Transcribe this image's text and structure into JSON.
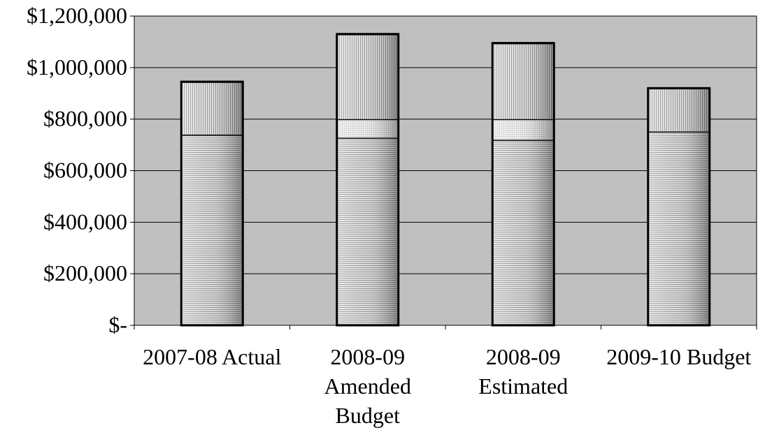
{
  "chart_data": {
    "type": "bar",
    "stacked": true,
    "categories": [
      "2007-08 Actual",
      "2008-09 Amended Budget",
      "2008-09 Estimated",
      "2009-10 Budget"
    ],
    "category_label_lines": [
      [
        "2007-08 Actual"
      ],
      [
        "2008-09",
        "Amended",
        "Budget"
      ],
      [
        "2008-09",
        "Estimated"
      ],
      [
        "2009-10 Budget"
      ]
    ],
    "series": [
      {
        "values": [
          740000,
          728000,
          720000,
          752000
        ]
      },
      {
        "values": [
          0,
          72000,
          80000,
          0
        ]
      },
      {
        "values": [
          205000,
          330000,
          295000,
          168000
        ]
      }
    ],
    "ylim": [
      0,
      1200000
    ],
    "yticks": [
      0,
      200000,
      400000,
      600000,
      800000,
      1000000,
      1200000
    ],
    "ytick_labels": [
      "$-",
      "$200,000",
      "$400,000",
      "$600,000",
      "$800,000",
      "$1,000,000",
      "$1,200,000"
    ],
    "grid": true,
    "legend": "none",
    "colors": {
      "plot_background": "#c0c0c0",
      "gridline": "#000000",
      "bar_outline": "#000000"
    }
  }
}
